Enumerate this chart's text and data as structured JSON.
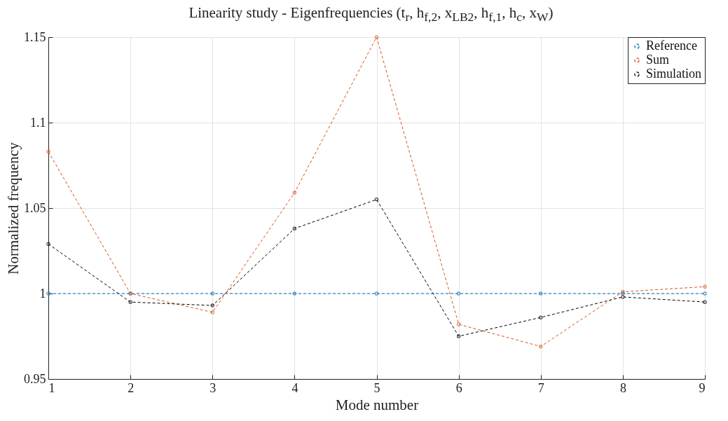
{
  "chart_data": {
    "type": "line",
    "title": "Linearity study - Eigenfrequencies (t$_{r}$, h$_{f,2}$, x$_{LB2}$, h$_{f,1}$, h$_{c}$, x$_{W}$)",
    "xlabel": "Mode number",
    "ylabel": "Normalized frequency",
    "x": [
      1,
      2,
      3,
      4,
      5,
      6,
      7,
      8,
      9
    ],
    "series": [
      {
        "name": "Reference",
        "color": "#0072bd",
        "values": [
          1,
          1,
          1,
          1,
          1,
          1,
          1,
          1,
          1
        ]
      },
      {
        "name": "Sum",
        "color": "#d95319",
        "values": [
          1.083,
          1.0,
          0.989,
          1.059,
          1.15,
          0.982,
          0.969,
          1.001,
          1.004
        ]
      },
      {
        "name": "Simulation",
        "color": "#000000",
        "values": [
          1.029,
          0.995,
          0.993,
          1.038,
          1.055,
          0.975,
          0.986,
          0.998,
          0.995
        ]
      }
    ],
    "xlim": [
      1,
      9
    ],
    "xticks": [
      1,
      2,
      3,
      4,
      5,
      6,
      7,
      8,
      9
    ],
    "ylim": [
      0.95,
      1.15
    ],
    "yticks": [
      0.95,
      1,
      1.05,
      1.1,
      1.15
    ],
    "grid": true,
    "legend": "top right",
    "marker": "circle",
    "line_style": "dashed"
  }
}
